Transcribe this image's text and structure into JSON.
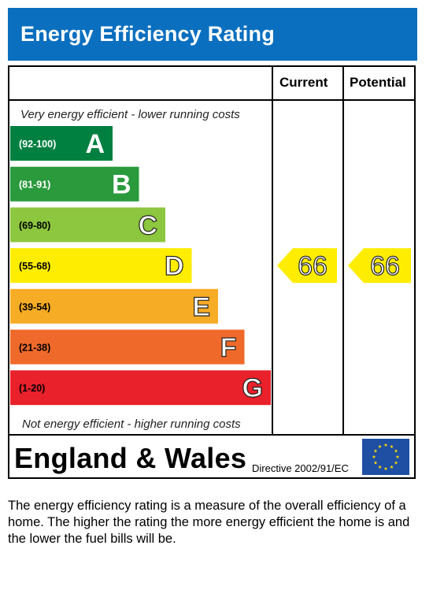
{
  "title": "Energy Efficiency Rating",
  "columns": {
    "current": "Current",
    "potential": "Potential"
  },
  "top_caption": "Very energy efficient - lower running costs",
  "bottom_caption": "Not energy efficient - higher running costs",
  "chart_data": {
    "type": "bar",
    "categories": [
      "A",
      "B",
      "C",
      "D",
      "E",
      "F",
      "G"
    ],
    "bands": [
      {
        "letter": "A",
        "range": "(92-100)",
        "color": "#008040",
        "text_color": "#ffffff"
      },
      {
        "letter": "B",
        "range": "(81-91)",
        "color": "#2a9a3c",
        "text_color": "#ffffff"
      },
      {
        "letter": "C",
        "range": "(69-80)",
        "color": "#8dc63f",
        "text_color": "#000000"
      },
      {
        "letter": "D",
        "range": "(55-68)",
        "color": "#ffed00",
        "text_color": "#000000"
      },
      {
        "letter": "E",
        "range": "(39-54)",
        "color": "#f7ac25",
        "text_color": "#000000"
      },
      {
        "letter": "F",
        "range": "(21-38)",
        "color": "#ef6a2a",
        "text_color": "#000000"
      },
      {
        "letter": "G",
        "range": "(1-20)",
        "color": "#e9212a",
        "text_color": "#000000"
      }
    ],
    "current": {
      "value": 66,
      "band": "D",
      "color": "#ffed00"
    },
    "potential": {
      "value": 66,
      "band": "D",
      "color": "#ffed00"
    }
  },
  "footer": {
    "region": "England & Wales",
    "directive": "Directive 2002/91/EC",
    "flag_icon": "eu-flag-icon"
  },
  "description": "The energy efficiency rating is a measure of the overall efficiency of a home. The higher the rating the more energy efficient the home is and the lower the fuel bills will be."
}
